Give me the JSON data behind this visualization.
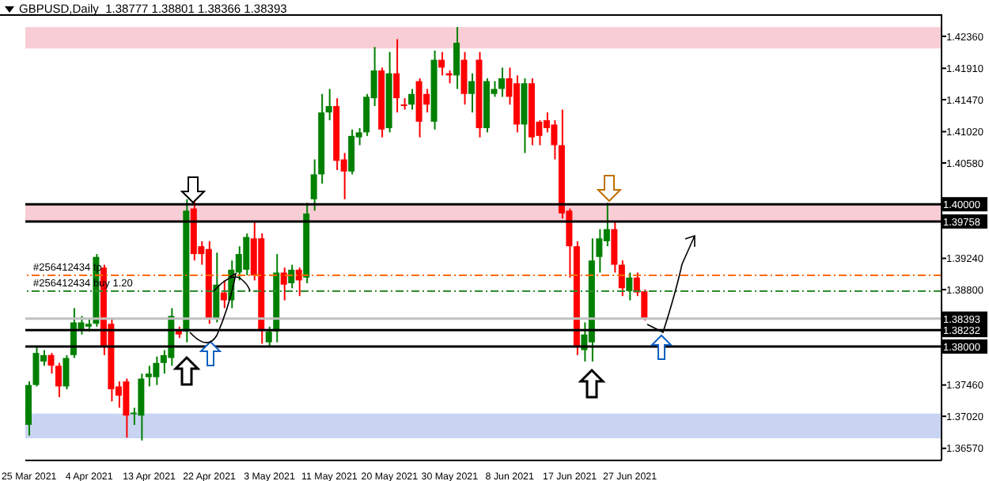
{
  "chart_data": {
    "type": "candlestick",
    "title": "GBPUSD,Daily  1.38777 1.38801 1.38366 1.38393",
    "categories": [
      "25 Mar 2021",
      null,
      null,
      null,
      null,
      null,
      null,
      null,
      "4 Apr 2021",
      null,
      null,
      null,
      null,
      null,
      null,
      null,
      "13 Apr 2021",
      null,
      null,
      null,
      null,
      null,
      null,
      null,
      "22 Apr 2021",
      null,
      null,
      null,
      null,
      null,
      null,
      null,
      "3 May 2021",
      null,
      null,
      null,
      null,
      null,
      null,
      null,
      "11 May 2021",
      null,
      null,
      null,
      null,
      null,
      null,
      null,
      "20 May 2021",
      null,
      null,
      null,
      null,
      null,
      null,
      null,
      "30 May 2021",
      null,
      null,
      null,
      null,
      null,
      null,
      null,
      "8 Jun 2021",
      null,
      null,
      null,
      null,
      null,
      null,
      null,
      "17 Jun 2021",
      null,
      null,
      null,
      null,
      null,
      null,
      null,
      "27 Jun 2021",
      null,
      null,
      null,
      null,
      null,
      null,
      null,
      null,
      null,
      null,
      null,
      null,
      null,
      null,
      null,
      null,
      null,
      null,
      null,
      null,
      null,
      null,
      null,
      null,
      null,
      null,
      null,
      null,
      null,
      null,
      null,
      null,
      null,
      null,
      null,
      null,
      null,
      null,
      null,
      null,
      null
    ],
    "ohlc": [
      [
        1.369,
        1.3751,
        1.3675,
        1.3746
      ],
      [
        1.3746,
        1.3801,
        1.3744,
        1.3791
      ],
      [
        1.3779,
        1.3795,
        1.3773,
        1.3788
      ],
      [
        1.3788,
        1.3791,
        1.3762,
        1.3773
      ],
      [
        1.3773,
        1.3777,
        1.3729,
        1.3744
      ],
      [
        1.3744,
        1.3788,
        1.374,
        1.3784
      ],
      [
        1.3788,
        1.3854,
        1.3784,
        1.3834
      ],
      [
        1.3823,
        1.3843,
        1.3817,
        1.3834
      ],
      [
        1.3828,
        1.3839,
        1.3821,
        1.3832
      ],
      [
        1.3832,
        1.393,
        1.3828,
        1.3926
      ],
      [
        1.3911,
        1.3915,
        1.3788,
        1.3801
      ],
      [
        1.3832,
        1.3839,
        1.3723,
        1.374
      ],
      [
        1.3744,
        1.3751,
        1.3714,
        1.3731
      ],
      [
        1.3751,
        1.3755,
        1.3672,
        1.3703
      ],
      [
        1.3705,
        1.3714,
        1.369,
        1.3707
      ],
      [
        1.3703,
        1.3762,
        1.3668,
        1.3755
      ],
      [
        1.3757,
        1.3773,
        1.3744,
        1.3762
      ],
      [
        1.3757,
        1.3786,
        1.3746,
        1.3777
      ],
      [
        1.3777,
        1.3795,
        1.3762,
        1.3788
      ],
      [
        1.3784,
        1.3854,
        1.3773,
        1.3843
      ],
      [
        1.3823,
        1.3828,
        1.3812,
        1.3817
      ],
      [
        1.3821,
        1.4007,
        1.3806,
        1.3991
      ],
      [
        1.3994,
        1.4007,
        1.3921,
        1.393
      ],
      [
        1.3941,
        1.3948,
        1.3915,
        1.393
      ],
      [
        1.3937,
        1.3948,
        1.3832,
        1.3839
      ],
      [
        1.3839,
        1.3932,
        1.3834,
        1.3887
      ],
      [
        1.3876,
        1.3893,
        1.3854,
        1.3865
      ],
      [
        1.3865,
        1.3921,
        1.3854,
        1.3908
      ],
      [
        1.3904,
        1.3941,
        1.3893,
        1.393
      ],
      [
        1.3908,
        1.3959,
        1.39,
        1.3954
      ],
      [
        1.3952,
        1.3976,
        1.3893,
        1.39
      ],
      [
        1.3952,
        1.3959,
        1.3804,
        1.3823
      ],
      [
        1.3806,
        1.3828,
        1.3801,
        1.3821
      ],
      [
        1.3821,
        1.393,
        1.3806,
        1.3904
      ],
      [
        1.3904,
        1.3911,
        1.3865,
        1.3887
      ],
      [
        1.3889,
        1.3915,
        1.3882,
        1.3908
      ],
      [
        1.3908,
        1.3911,
        1.3871,
        1.3893
      ],
      [
        1.3897,
        1.4002,
        1.3889,
        1.3987
      ],
      [
        1.4007,
        1.4063,
        1.3991,
        1.4042
      ],
      [
        1.4042,
        1.4155,
        1.4029,
        1.4129
      ],
      [
        1.4129,
        1.4162,
        1.4118,
        1.4138
      ],
      [
        1.4138,
        1.4149,
        1.4048,
        1.4061
      ],
      [
        1.4063,
        1.4072,
        1.4007,
        1.4046
      ],
      [
        1.4046,
        1.4105,
        1.4042,
        1.4096
      ],
      [
        1.4094,
        1.4107,
        1.4083,
        1.4101
      ],
      [
        1.4101,
        1.4155,
        1.4096,
        1.4151
      ],
      [
        1.4149,
        1.4221,
        1.4138,
        1.4188
      ],
      [
        1.4188,
        1.4192,
        1.4094,
        1.4105
      ],
      [
        1.4107,
        1.4214,
        1.4101,
        1.4184
      ],
      [
        1.4184,
        1.4232,
        1.4129,
        1.4149
      ],
      [
        1.414,
        1.4149,
        1.4133,
        1.4138
      ],
      [
        1.414,
        1.4162,
        1.4133,
        1.4155
      ],
      [
        1.4173,
        1.4177,
        1.4094,
        1.4116
      ],
      [
        1.4155,
        1.4162,
        1.4129,
        1.414
      ],
      [
        1.4116,
        1.4216,
        1.4105,
        1.4203
      ],
      [
        1.4203,
        1.4214,
        1.4181,
        1.4192
      ],
      [
        1.4184,
        1.4188,
        1.417,
        1.4181
      ],
      [
        1.4181,
        1.4249,
        1.4162,
        1.4227
      ],
      [
        1.4203,
        1.4214,
        1.414,
        1.4155
      ],
      [
        1.4155,
        1.4184,
        1.4129,
        1.4173
      ],
      [
        1.4203,
        1.4214,
        1.4094,
        1.4107
      ],
      [
        1.4107,
        1.4177,
        1.4101,
        1.4173
      ],
      [
        1.4155,
        1.4173,
        1.4151,
        1.4162
      ],
      [
        1.4162,
        1.4192,
        1.4151,
        1.4177
      ],
      [
        1.4177,
        1.4192,
        1.414,
        1.4151
      ],
      [
        1.417,
        1.4181,
        1.4101,
        1.4112
      ],
      [
        1.4112,
        1.4177,
        1.4072,
        1.417
      ],
      [
        1.417,
        1.4177,
        1.4083,
        1.4094
      ],
      [
        1.4116,
        1.4118,
        1.4083,
        1.4096
      ],
      [
        1.4118,
        1.4129,
        1.4101,
        1.4107
      ],
      [
        1.4112,
        1.4118,
        1.4063,
        1.4083
      ],
      [
        1.4083,
        1.4133,
        1.398,
        1.3987
      ],
      [
        1.3991,
        1.3994,
        1.3897,
        1.3941
      ],
      [
        1.3941,
        1.3948,
        1.3788,
        1.3799
      ],
      [
        1.3795,
        1.3834,
        1.3779,
        1.3817
      ],
      [
        1.3806,
        1.3952,
        1.3779,
        1.3921
      ],
      [
        1.3926,
        1.3965,
        1.3904,
        1.3952
      ],
      [
        1.3948,
        1.4002,
        1.3941,
        1.3965
      ],
      [
        1.3965,
        1.3976,
        1.3904,
        1.3915
      ],
      [
        1.3915,
        1.3921,
        1.3871,
        1.3882
      ],
      [
        1.3878,
        1.3904,
        1.3865,
        1.3897
      ],
      [
        1.3897,
        1.3904,
        1.3871,
        1.3876
      ],
      [
        1.38777,
        1.38801,
        1.38366,
        1.38393
      ],
      null,
      null,
      null,
      null,
      null,
      null,
      null,
      null,
      null,
      null,
      null,
      null,
      null,
      null,
      null,
      null,
      null,
      null,
      null,
      null,
      null,
      null,
      null,
      null,
      null,
      null,
      null,
      null,
      null,
      null,
      null,
      null,
      null,
      null,
      null,
      null,
      null,
      null,
      null
    ],
    "colors": [
      "#008000",
      "#008000",
      "#008000",
      "#ff0000",
      "#ff0000",
      "#008000",
      "#008000",
      "#008000",
      "#008000",
      "#008000",
      "#ff0000",
      "#ff0000",
      "#ff0000",
      "#ff0000",
      "#008000",
      "#008000",
      "#008000",
      "#008000",
      "#008000",
      "#008000",
      "#ff0000",
      "#008000",
      "#ff0000",
      "#ff0000",
      "#ff0000",
      "#008000",
      "#ff0000",
      "#008000",
      "#008000",
      "#008000",
      "#ff0000",
      "#ff0000",
      "#008000",
      "#008000",
      "#ff0000",
      "#008000",
      "#ff0000",
      "#008000",
      "#008000",
      "#008000",
      "#008000",
      "#ff0000",
      "#ff0000",
      "#008000",
      "#008000",
      "#008000",
      "#008000",
      "#ff0000",
      "#008000",
      "#ff0000",
      "#ff0000",
      "#008000",
      "#ff0000",
      "#ff0000",
      "#008000",
      "#ff0000",
      "#ff0000",
      "#008000",
      "#ff0000",
      "#008000",
      "#ff0000",
      "#008000",
      "#008000",
      "#008000",
      "#ff0000",
      "#ff0000",
      "#008000",
      "#ff0000",
      "#ff0000",
      "#ff0000",
      "#ff0000",
      "#ff0000",
      "#ff0000",
      "#ff0000",
      "#008000",
      "#008000",
      "#008000",
      "#008000",
      "#ff0000",
      "#ff0000",
      "#008000",
      "#ff0000",
      "#ff0000",
      null,
      null,
      null,
      null,
      null,
      null,
      null,
      null,
      null,
      null,
      null,
      null,
      null,
      null,
      null,
      null,
      null,
      null,
      null,
      null,
      null,
      null,
      null,
      null,
      null,
      null,
      null,
      null,
      null,
      null,
      null,
      null,
      null,
      null,
      null,
      null,
      null,
      null,
      null
    ],
    "ylim": [
      1.364,
      1.4267
    ],
    "yticks": [
      {
        "value": 1.3657,
        "label": "1.36570"
      },
      {
        "value": 1.3702,
        "label": "1.37020"
      },
      {
        "value": 1.3746,
        "label": "1.37460"
      },
      {
        "value": 1.388,
        "label": "1.38800"
      },
      {
        "value": 1.3924,
        "label": "1.39240"
      },
      {
        "value": 1.4058,
        "label": "1.40580"
      },
      {
        "value": 1.4102,
        "label": "1.41020"
      },
      {
        "value": 1.4147,
        "label": "1.41470"
      },
      {
        "value": 1.4191,
        "label": "1.41910"
      },
      {
        "value": 1.4236,
        "label": "1.42360"
      }
    ],
    "ref_lines": [
      {
        "axis": "y",
        "value": 1.4,
        "label": "1.40000",
        "color": "#000000",
        "line_style": "solid"
      },
      {
        "axis": "y",
        "value": 1.39758,
        "label": "1.39758",
        "color": "#000000",
        "line_style": "solid"
      },
      {
        "axis": "y",
        "value": 1.39,
        "label": "#256412434 tp",
        "color": "#ff6a00",
        "line_style": "dashed"
      },
      {
        "axis": "y",
        "value": 1.3878,
        "label": "#256412434 buy 1.20",
        "color": "#2e8b2e",
        "line_style": "dashed"
      },
      {
        "axis": "y",
        "value": 1.38393,
        "label": "1.38393",
        "color": "#c0c0c0",
        "line_style": "solid"
      },
      {
        "axis": "y",
        "value": 1.38232,
        "label": "1.38232",
        "color": "#000000",
        "line_style": "solid"
      },
      {
        "axis": "y",
        "value": 1.38,
        "label": "1.38000",
        "color": "#000000",
        "line_style": "solid"
      }
    ],
    "bands": [
      {
        "axis": "y",
        "from": 1.4219,
        "to": 1.4249,
        "color": "#f9cdd5"
      },
      {
        "axis": "y",
        "from": 1.39758,
        "to": 1.4,
        "color": "#f9cdd5"
      },
      {
        "axis": "y",
        "from": 1.3671,
        "to": 1.3706,
        "color": "#c8d4f2"
      }
    ],
    "grid": false,
    "legend": false
  }
}
